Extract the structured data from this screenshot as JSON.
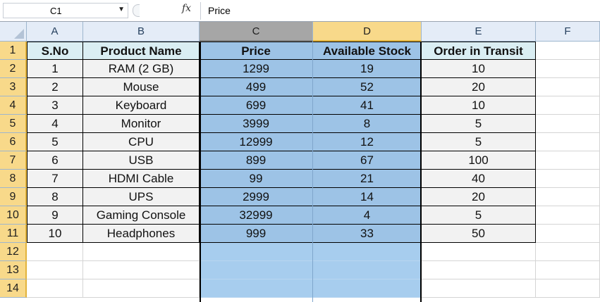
{
  "formula_bar": {
    "name_box": "C1",
    "fx_label": "fx",
    "formula": "Price"
  },
  "columns": [
    "A",
    "B",
    "C",
    "D",
    "E",
    "F"
  ],
  "rows": [
    "1",
    "2",
    "3",
    "4",
    "5",
    "6",
    "7",
    "8",
    "9",
    "10",
    "11",
    "12",
    "13",
    "14"
  ],
  "table": {
    "headers": [
      "S.No",
      "Product Name",
      "Price",
      "Available Stock",
      "Order in Transit"
    ],
    "rows": [
      [
        "1",
        "RAM (2 GB)",
        "1299",
        "19",
        "10"
      ],
      [
        "2",
        "Mouse",
        "499",
        "52",
        "20"
      ],
      [
        "3",
        "Keyboard",
        "699",
        "41",
        "10"
      ],
      [
        "4",
        "Monitor",
        "3999",
        "8",
        "5"
      ],
      [
        "5",
        "CPU",
        "12999",
        "12",
        "5"
      ],
      [
        "6",
        "USB",
        "899",
        "67",
        "100"
      ],
      [
        "7",
        "HDMI Cable",
        "99",
        "21",
        "40"
      ],
      [
        "8",
        "UPS",
        "2999",
        "14",
        "20"
      ],
      [
        "9",
        "Gaming Console",
        "32999",
        "4",
        "5"
      ],
      [
        "10",
        "Headphones",
        "999",
        "33",
        "50"
      ]
    ]
  },
  "colors": {
    "selection": "#9dc3e6",
    "header_fill": "#daeef3",
    "highlight_header": "#f8d98a"
  }
}
